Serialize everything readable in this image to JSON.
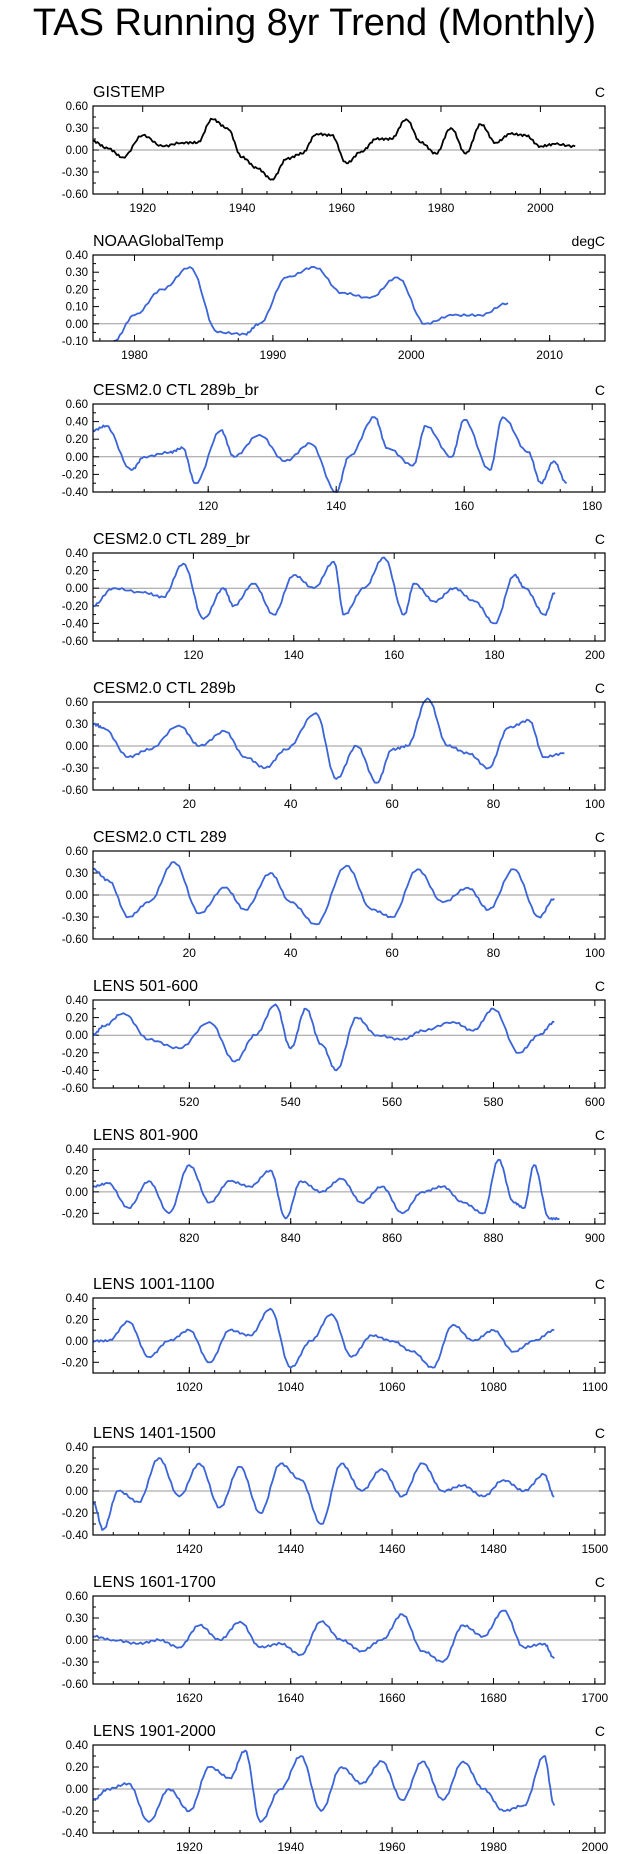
{
  "page_title": "TAS Running 8yr Trend (Monthly)",
  "colors": {
    "observed": "#000000",
    "model": "#3a64d8",
    "zero_line": "#9a9a9a"
  },
  "chart_data": [
    {
      "type": "line",
      "title": "GISTEMP",
      "units": "C",
      "xlim": [
        1910,
        2013
      ],
      "xticks": [
        1920,
        1940,
        1960,
        1980,
        2000
      ],
      "ylim": [
        -0.6,
        0.6
      ],
      "yticks": [
        "0.60",
        "0.30",
        "0.00",
        "-0.30",
        "-0.60"
      ],
      "color": "#000000",
      "x": [
        1910,
        1913,
        1916,
        1920,
        1924,
        1928,
        1931,
        1934,
        1937,
        1940,
        1943,
        1946,
        1949,
        1952,
        1955,
        1958,
        1961,
        1964,
        1967,
        1970,
        1973,
        1976,
        1979,
        1982,
        1985,
        1988,
        1991,
        1994,
        1997,
        2000,
        2003,
        2007
      ],
      "y": [
        0.12,
        0.02,
        -0.1,
        0.2,
        0.05,
        0.1,
        0.1,
        0.42,
        0.3,
        -0.1,
        -0.25,
        -0.4,
        -0.12,
        -0.05,
        0.22,
        0.2,
        -0.18,
        -0.02,
        0.15,
        0.15,
        0.42,
        0.1,
        -0.05,
        0.3,
        -0.05,
        0.35,
        0.1,
        0.22,
        0.2,
        0.05,
        0.08,
        0.05
      ]
    },
    {
      "type": "line",
      "title": "NOAAGlobalTemp",
      "units": "degC",
      "xlim": [
        1977,
        2014
      ],
      "xticks": [
        1980,
        1990,
        2000,
        2010
      ],
      "ylim": [
        -0.1,
        0.4
      ],
      "yticks": [
        "0.40",
        "0.30",
        "0.20",
        "0.10",
        "0.00",
        "-0.10"
      ],
      "color": "#3a64d8",
      "x": [
        1978.5,
        1980,
        1982,
        1984,
        1986,
        1988,
        1989,
        1991,
        1993,
        1995,
        1997,
        1999,
        2001,
        2003,
        2005,
        2007
      ],
      "y": [
        -0.1,
        0.05,
        0.2,
        0.33,
        -0.05,
        -0.06,
        0.0,
        0.27,
        0.33,
        0.18,
        0.15,
        0.27,
        0.0,
        0.05,
        0.05,
        0.12
      ]
    },
    {
      "type": "line",
      "title": "CESM2.0 CTL 289b_br",
      "units": "C",
      "xlim": [
        102,
        182
      ],
      "xticks": [
        120,
        140,
        160,
        180
      ],
      "ylim": [
        -0.4,
        0.6
      ],
      "yticks": [
        "0.60",
        "0.40",
        "0.20",
        "0.00",
        "-0.20",
        "-0.40"
      ],
      "color": "#3a64d8",
      "x": [
        102,
        104,
        108,
        110,
        114,
        116,
        118,
        122,
        124,
        128,
        132,
        136,
        140,
        142,
        146,
        148,
        152,
        154,
        158,
        160,
        164,
        166,
        170,
        172,
        174,
        176
      ],
      "y": [
        0.3,
        0.35,
        -0.15,
        0.0,
        0.05,
        0.1,
        -0.3,
        0.3,
        0.0,
        0.25,
        -0.05,
        0.15,
        -0.4,
        0.0,
        0.45,
        0.1,
        -0.1,
        0.35,
        0.0,
        0.42,
        -0.15,
        0.45,
        0.05,
        -0.3,
        -0.05,
        -0.3
      ]
    },
    {
      "type": "line",
      "title": "CESM2.0 CTL 289_br",
      "units": "C",
      "xlim": [
        100,
        202
      ],
      "xticks": [
        120,
        140,
        160,
        180,
        200
      ],
      "ylim": [
        -0.6,
        0.4
      ],
      "yticks": [
        "0.40",
        "0.20",
        "0.00",
        "-0.20",
        "-0.40",
        "-0.60"
      ],
      "color": "#3a64d8",
      "x": [
        100,
        104,
        110,
        114,
        118,
        122,
        126,
        128,
        132,
        136,
        140,
        144,
        148,
        150,
        154,
        158,
        162,
        164,
        168,
        172,
        176,
        180,
        184,
        186,
        190,
        192
      ],
      "y": [
        -0.2,
        0.0,
        -0.05,
        -0.1,
        0.28,
        -0.35,
        0.0,
        -0.2,
        0.05,
        -0.3,
        0.15,
        0.0,
        0.3,
        -0.3,
        0.0,
        0.35,
        -0.3,
        0.05,
        -0.15,
        0.0,
        -0.15,
        -0.4,
        0.15,
        0.0,
        -0.3,
        -0.05
      ]
    },
    {
      "type": "line",
      "title": "CESM2.0 CTL 289b",
      "units": "C",
      "xlim": [
        1,
        102
      ],
      "xticks": [
        20,
        40,
        60,
        80,
        100
      ],
      "ylim": [
        -0.6,
        0.6
      ],
      "yticks": [
        "0.60",
        "0.30",
        "0.00",
        "-0.30",
        "-0.60"
      ],
      "color": "#3a64d8",
      "x": [
        1,
        3,
        8,
        12,
        18,
        22,
        27,
        31,
        35,
        39,
        45,
        49,
        53,
        57,
        60,
        63,
        67,
        71,
        75,
        79,
        83,
        87,
        90,
        94
      ],
      "y": [
        0.3,
        0.25,
        -0.15,
        -0.05,
        0.28,
        0.0,
        0.2,
        -0.15,
        -0.3,
        -0.05,
        0.45,
        -0.45,
        0.0,
        -0.5,
        -0.05,
        0.0,
        0.65,
        0.0,
        -0.1,
        -0.3,
        0.25,
        0.35,
        -0.15,
        -0.1
      ]
    },
    {
      "type": "line",
      "title": "CESM2.0 CTL 289",
      "units": "C",
      "xlim": [
        1,
        102
      ],
      "xticks": [
        20,
        40,
        60,
        80,
        100
      ],
      "ylim": [
        -0.6,
        0.6
      ],
      "yticks": [
        "0.60",
        "0.30",
        "0.00",
        "-0.30",
        "-0.60"
      ],
      "color": "#3a64d8",
      "x": [
        1,
        4,
        8,
        12,
        17,
        22,
        27,
        31,
        36,
        40,
        45,
        51,
        56,
        60,
        65,
        70,
        75,
        79,
        84,
        89,
        92
      ],
      "y": [
        0.35,
        0.2,
        -0.3,
        -0.1,
        0.45,
        -0.25,
        0.1,
        -0.2,
        0.3,
        -0.1,
        -0.4,
        0.4,
        -0.2,
        -0.3,
        0.35,
        -0.1,
        0.1,
        -0.2,
        0.35,
        -0.3,
        -0.05
      ]
    },
    {
      "type": "line",
      "title": "LENS 501-600",
      "units": "C",
      "xlim": [
        501,
        602
      ],
      "xticks": [
        520,
        540,
        560,
        580,
        600
      ],
      "ylim": [
        -0.6,
        0.4
      ],
      "yticks": [
        "0.40",
        "0.20",
        "0.00",
        "-0.20",
        "-0.40",
        "-0.60"
      ],
      "color": "#3a64d8",
      "x": [
        501,
        503,
        507,
        512,
        518,
        524,
        529,
        533,
        537,
        540,
        543,
        546,
        549,
        553,
        557,
        562,
        566,
        572,
        576,
        580,
        585,
        589,
        592
      ],
      "y": [
        0.0,
        0.1,
        0.25,
        -0.05,
        -0.15,
        0.15,
        -0.3,
        0.0,
        0.35,
        -0.15,
        0.3,
        -0.1,
        -0.4,
        0.2,
        0.0,
        -0.05,
        0.05,
        0.15,
        0.05,
        0.3,
        -0.2,
        0.0,
        0.15
      ]
    },
    {
      "type": "line",
      "title": "LENS 801-900",
      "units": "C",
      "xlim": [
        801,
        902
      ],
      "xticks": [
        820,
        840,
        860,
        880,
        900
      ],
      "ylim": [
        -0.3,
        0.4
      ],
      "yticks": [
        "0.40",
        "0.20",
        "0.00",
        "-0.20"
      ],
      "color": "#3a64d8",
      "x": [
        801,
        804,
        808,
        812,
        816,
        820,
        824,
        828,
        832,
        836,
        839,
        842,
        846,
        850,
        854,
        858,
        862,
        866,
        870,
        874,
        878,
        881,
        884,
        886,
        888,
        891,
        893
      ],
      "y": [
        0.05,
        0.08,
        -0.15,
        0.1,
        -0.2,
        0.25,
        -0.1,
        0.1,
        0.05,
        0.2,
        -0.25,
        0.1,
        0.0,
        0.12,
        -0.1,
        0.05,
        -0.2,
        0.0,
        0.05,
        -0.1,
        -0.2,
        0.3,
        -0.1,
        -0.15,
        0.25,
        -0.25,
        -0.25
      ]
    },
    {
      "type": "line",
      "title": "LENS 1001-1100",
      "units": "C",
      "xlim": [
        1001,
        1102
      ],
      "xticks": [
        1020,
        1040,
        1060,
        1080,
        1100
      ],
      "ylim": [
        -0.3,
        0.4
      ],
      "yticks": [
        "0.40",
        "0.20",
        "0.00",
        "-0.20"
      ],
      "color": "#3a64d8",
      "x": [
        1001,
        1004,
        1008,
        1012,
        1016,
        1020,
        1024,
        1028,
        1032,
        1036,
        1040,
        1044,
        1048,
        1052,
        1056,
        1060,
        1064,
        1068,
        1072,
        1076,
        1080,
        1084,
        1088,
        1092
      ],
      "y": [
        0.0,
        0.0,
        0.18,
        -0.15,
        0.0,
        0.1,
        -0.2,
        0.1,
        0.05,
        0.3,
        -0.25,
        0.0,
        0.25,
        -0.15,
        0.05,
        0.0,
        -0.1,
        -0.25,
        0.15,
        0.0,
        0.1,
        -0.1,
        0.0,
        0.1
      ]
    },
    {
      "type": "line",
      "title": "LENS 1401-1500",
      "units": "C",
      "xlim": [
        1401,
        1502
      ],
      "xticks": [
        1420,
        1440,
        1460,
        1480,
        1500
      ],
      "ylim": [
        -0.4,
        0.4
      ],
      "yticks": [
        "0.40",
        "0.20",
        "0.00",
        "-0.20",
        "-0.40"
      ],
      "color": "#3a64d8",
      "x": [
        1401,
        1403,
        1406,
        1410,
        1414,
        1418,
        1422,
        1426,
        1430,
        1434,
        1438,
        1442,
        1446,
        1450,
        1454,
        1458,
        1462,
        1466,
        1470,
        1474,
        1478,
        1482,
        1486,
        1490,
        1492
      ],
      "y": [
        -0.1,
        -0.35,
        0.0,
        -0.1,
        0.3,
        -0.05,
        0.25,
        -0.15,
        0.22,
        -0.2,
        0.25,
        0.1,
        -0.3,
        0.25,
        0.0,
        0.2,
        -0.05,
        0.25,
        0.0,
        0.05,
        -0.05,
        0.1,
        0.0,
        0.15,
        -0.05
      ]
    },
    {
      "type": "line",
      "title": "LENS 1601-1700",
      "units": "C",
      "xlim": [
        1601,
        1702
      ],
      "xticks": [
        1620,
        1640,
        1660,
        1680,
        1700
      ],
      "ylim": [
        -0.6,
        0.6
      ],
      "yticks": [
        "0.60",
        "0.30",
        "0.00",
        "-0.30",
        "-0.60"
      ],
      "color": "#3a64d8",
      "x": [
        1601,
        1605,
        1610,
        1614,
        1618,
        1622,
        1626,
        1630,
        1634,
        1638,
        1642,
        1646,
        1650,
        1654,
        1658,
        1662,
        1666,
        1670,
        1674,
        1678,
        1682,
        1686,
        1690,
        1692
      ],
      "y": [
        0.05,
        0.0,
        -0.05,
        0.0,
        -0.1,
        0.2,
        0.0,
        0.25,
        -0.1,
        -0.05,
        -0.2,
        0.25,
        0.0,
        -0.15,
        0.0,
        0.35,
        -0.15,
        -0.3,
        0.2,
        0.05,
        0.4,
        -0.1,
        -0.05,
        -0.25
      ]
    },
    {
      "type": "line",
      "title": "LENS 1901-2000",
      "units": "C",
      "xlim": [
        1901,
        2002
      ],
      "xticks": [
        1920,
        1940,
        1960,
        1980,
        2000
      ],
      "ylim": [
        -0.4,
        0.4
      ],
      "yticks": [
        "0.40",
        "0.20",
        "0.00",
        "-0.20",
        "-0.40"
      ],
      "color": "#3a64d8",
      "x": [
        1901,
        1904,
        1908,
        1912,
        1916,
        1920,
        1924,
        1928,
        1931,
        1934,
        1938,
        1942,
        1946,
        1950,
        1954,
        1958,
        1962,
        1966,
        1970,
        1974,
        1978,
        1982,
        1986,
        1990,
        1992
      ],
      "y": [
        -0.1,
        0.0,
        0.05,
        -0.3,
        0.0,
        -0.2,
        0.2,
        0.1,
        0.35,
        -0.3,
        0.0,
        0.3,
        -0.2,
        0.2,
        0.05,
        0.25,
        -0.1,
        0.25,
        -0.1,
        0.25,
        0.0,
        -0.2,
        -0.15,
        0.3,
        -0.15
      ]
    }
  ]
}
